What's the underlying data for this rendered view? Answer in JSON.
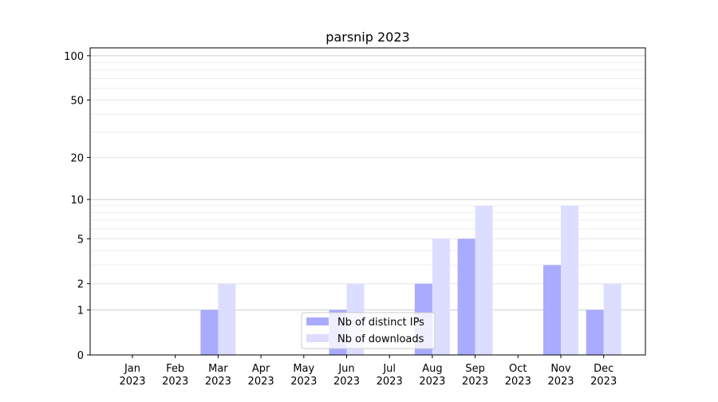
{
  "chart_data": {
    "type": "bar",
    "title": "parsnip 2023",
    "xlabel": "",
    "ylabel": "",
    "yscale": "symlog (log10(1+y))",
    "ylim": [
      0,
      113
    ],
    "yticks": [
      0,
      1,
      2,
      5,
      10,
      20,
      50,
      100
    ],
    "grid": true,
    "legend": "bottom-center",
    "categories": [
      "Jan\n2023",
      "Feb\n2023",
      "Mar\n2023",
      "Apr\n2023",
      "May\n2023",
      "Jun\n2023",
      "Jul\n2023",
      "Aug\n2023",
      "Sep\n2023",
      "Oct\n2023",
      "Nov\n2023",
      "Dec\n2023"
    ],
    "series": [
      {
        "name": "Nb of distinct IPs",
        "color": "#aaaaff",
        "values": [
          0,
          0,
          1,
          0,
          0,
          1,
          0,
          2,
          5,
          0,
          3,
          1
        ]
      },
      {
        "name": "Nb of downloads",
        "color": "#ddddff",
        "values": [
          0,
          0,
          2,
          0,
          0,
          2,
          0,
          5,
          9,
          0,
          9,
          2
        ]
      }
    ]
  }
}
